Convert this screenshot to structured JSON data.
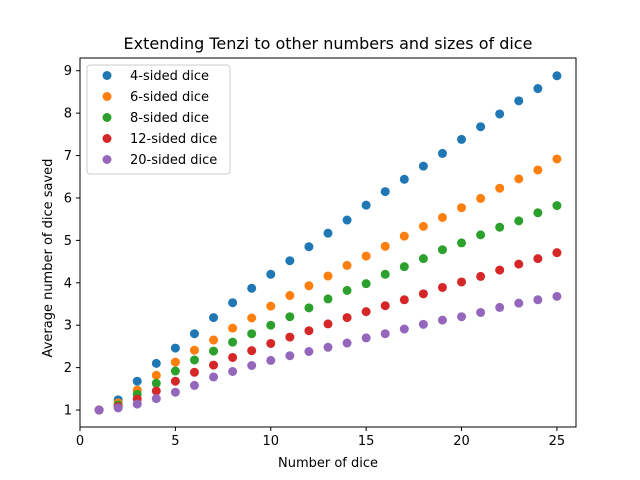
{
  "chart_data": {
    "type": "scatter",
    "title": "Extending Tenzi to other numbers and sizes of dice",
    "xlabel": "Number of dice",
    "ylabel": "Average number of dice saved",
    "xlim": [
      0,
      26
    ],
    "ylim": [
      0.6,
      9.3
    ],
    "xticks": [
      0,
      5,
      10,
      15,
      20,
      25
    ],
    "yticks": [
      1,
      2,
      3,
      4,
      5,
      6,
      7,
      8,
      9
    ],
    "grid": false,
    "legend_position": "upper-left",
    "x": [
      1,
      2,
      3,
      4,
      5,
      6,
      7,
      8,
      9,
      10,
      11,
      12,
      13,
      14,
      15,
      16,
      17,
      18,
      19,
      20,
      21,
      22,
      23,
      24,
      25
    ],
    "series": [
      {
        "name": "4-sided dice",
        "color": "#1f77b4",
        "values": [
          1.0,
          1.24,
          1.68,
          2.1,
          2.46,
          2.8,
          3.18,
          3.53,
          3.87,
          4.2,
          4.52,
          4.85,
          5.17,
          5.48,
          5.83,
          6.15,
          6.44,
          6.75,
          7.05,
          7.38,
          7.68,
          7.98,
          8.29,
          8.58,
          8.88
        ]
      },
      {
        "name": "6-sided dice",
        "color": "#ff7f0e",
        "values": [
          1.0,
          1.17,
          1.47,
          1.82,
          2.13,
          2.41,
          2.65,
          2.93,
          3.17,
          3.45,
          3.7,
          3.93,
          4.16,
          4.41,
          4.63,
          4.86,
          5.1,
          5.33,
          5.54,
          5.77,
          5.99,
          6.23,
          6.45,
          6.66,
          6.92
        ]
      },
      {
        "name": "8-sided dice",
        "color": "#2ca02c",
        "values": [
          1.0,
          1.12,
          1.37,
          1.63,
          1.92,
          2.18,
          2.39,
          2.6,
          2.8,
          3.0,
          3.2,
          3.41,
          3.62,
          3.82,
          3.98,
          4.2,
          4.38,
          4.57,
          4.78,
          4.94,
          5.13,
          5.31,
          5.46,
          5.65,
          5.82
        ]
      },
      {
        "name": "12-sided dice",
        "color": "#d62728",
        "values": [
          1.0,
          1.08,
          1.26,
          1.45,
          1.68,
          1.89,
          2.06,
          2.24,
          2.4,
          2.57,
          2.72,
          2.87,
          3.03,
          3.18,
          3.32,
          3.46,
          3.6,
          3.74,
          3.89,
          4.02,
          4.15,
          4.3,
          4.44,
          4.57,
          4.71
        ]
      },
      {
        "name": "20-sided dice",
        "color": "#9467bd",
        "values": [
          1.0,
          1.05,
          1.14,
          1.27,
          1.42,
          1.58,
          1.78,
          1.91,
          2.05,
          2.17,
          2.28,
          2.38,
          2.48,
          2.58,
          2.7,
          2.8,
          2.91,
          3.02,
          3.12,
          3.2,
          3.3,
          3.42,
          3.52,
          3.6,
          3.68
        ]
      }
    ]
  }
}
